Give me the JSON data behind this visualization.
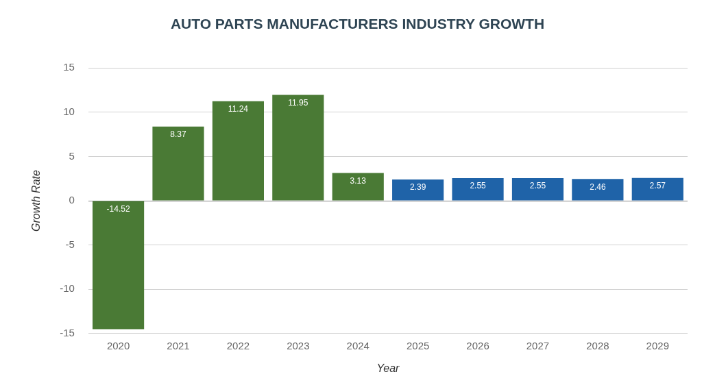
{
  "chart_data": {
    "type": "bar",
    "title": "AUTO PARTS MANUFACTURERS INDUSTRY GROWTH",
    "xlabel": "Year",
    "ylabel": "Growth Rate",
    "categories": [
      "2020",
      "2021",
      "2022",
      "2023",
      "2024",
      "2025",
      "2026",
      "2027",
      "2028",
      "2029"
    ],
    "values": [
      -14.52,
      8.37,
      11.24,
      11.95,
      3.13,
      2.39,
      2.55,
      2.55,
      2.46,
      2.57
    ],
    "colors": [
      "#4a7a35",
      "#4a7a35",
      "#4a7a35",
      "#4a7a35",
      "#4a7a35",
      "#1f63a8",
      "#1f63a8",
      "#1f63a8",
      "#1f63a8",
      "#1f63a8"
    ],
    "ylim": [
      -15,
      15
    ],
    "yticks": [
      -15,
      -10,
      -5,
      0,
      5,
      10,
      15
    ],
    "grid": "y",
    "data_labels": true
  }
}
